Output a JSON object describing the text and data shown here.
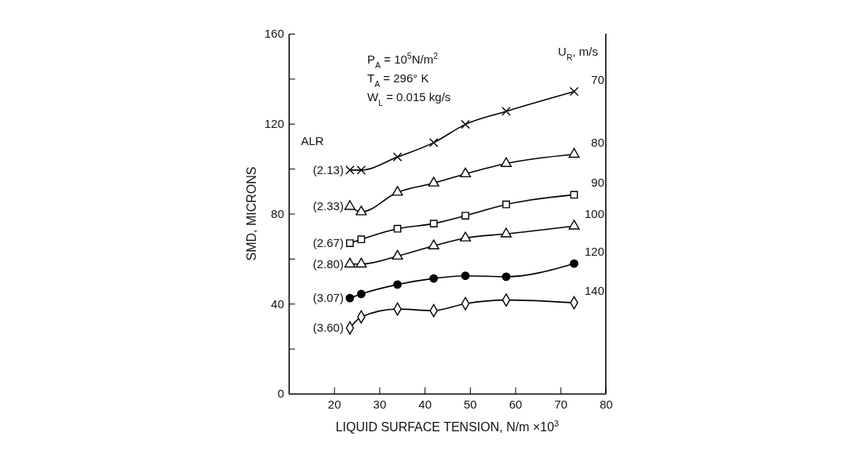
{
  "chart_data": {
    "type": "line",
    "xlabel": "LIQUID SURFACE TENSION, N/m ×10$^{3}$",
    "ylabel": "SMD, MICRONS",
    "legend_title": "U$_{R}$, m/s",
    "xlim": [
      10,
      80
    ],
    "xticks": [
      20,
      30,
      40,
      50,
      60,
      70,
      80
    ],
    "ylim": [
      0,
      160
    ],
    "yticks": [
      0,
      {
        "value": 20,
        "label": null
      },
      40,
      {
        "value": 60,
        "label": null
      },
      80,
      {
        "value": 100,
        "label": null
      },
      120,
      {
        "value": 140,
        "label": null
      },
      160
    ],
    "grid": false,
    "line_style": "solid",
    "x": [
      23.5,
      26,
      34,
      42,
      49,
      58,
      73
    ],
    "series": [
      {
        "name": "70",
        "color": "#000000",
        "marker": "cross",
        "values": [
          99.4,
          99.4,
          105.2,
          111.6,
          119.7,
          125.5,
          134.3
        ]
      },
      {
        "name": "80",
        "color": "#000000",
        "marker": "triangle",
        "values": [
          83.2,
          80.8,
          89.5,
          93.6,
          97.7,
          102.3,
          106.4
        ]
      },
      {
        "name": "90",
        "color": "#000000",
        "marker": "square",
        "values": [
          66.9,
          68.6,
          73.3,
          75.6,
          79.1,
          84.1,
          88.4
        ]
      },
      {
        "name": "100",
        "color": "#000000",
        "marker": "triangle",
        "values": [
          57.6,
          57.6,
          61.1,
          65.7,
          69.2,
          71.0,
          74.5
        ]
      },
      {
        "name": "120",
        "color": "#000000",
        "marker": "circle",
        "values": [
          42.5,
          44.3,
          48.5,
          51.2,
          52.4,
          52.0,
          57.8
        ]
      },
      {
        "name": "140",
        "color": "#000000",
        "marker": "diamond",
        "values": [
          29.2,
          34.1,
          37.6,
          36.9,
          40.0,
          41.6,
          40.4
        ]
      }
    ],
    "annotations": [
      "P$_{A}$ = 10$^{5}$N/m$^{2}$",
      "T$_{A}$ = 296° K",
      "W$_{L}$ = 0.015 kg/s",
      "ALR",
      "(2.13)",
      "(2.33)",
      "(2.67)",
      "(2.80)",
      "(3.07)",
      "(3.60)"
    ]
  }
}
